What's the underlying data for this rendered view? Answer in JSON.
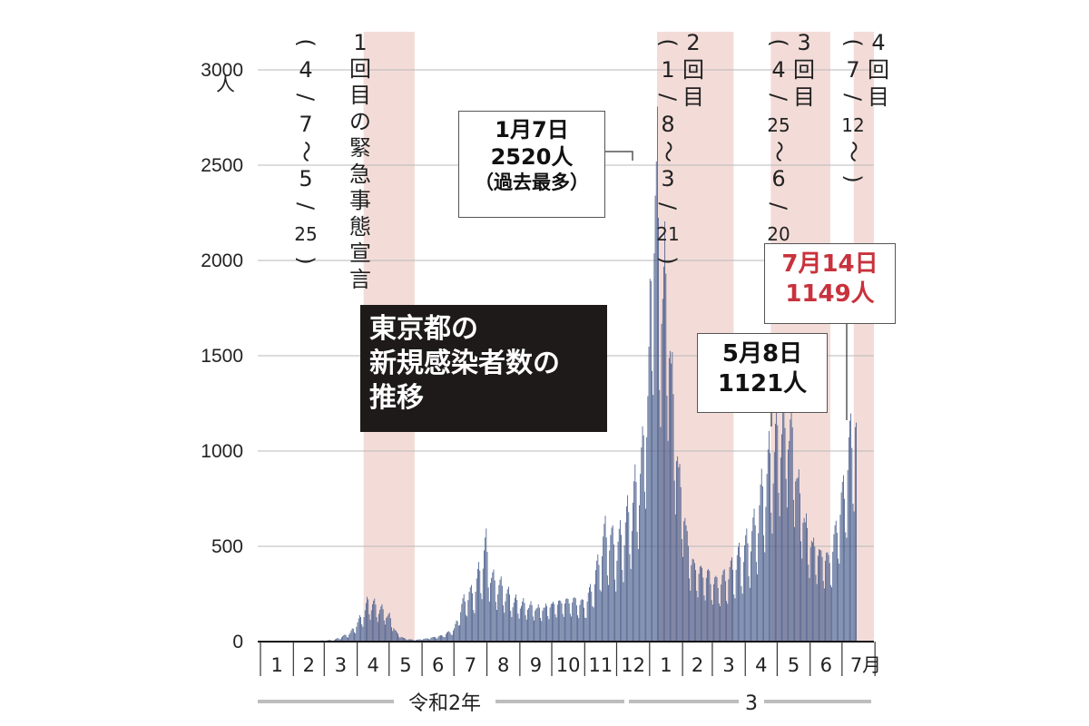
{
  "title_lines": [
    "東京都の",
    "新規感染者数の",
    "推移"
  ],
  "y_axis": {
    "unit": "人",
    "ticks": [
      0,
      500,
      1000,
      1500,
      2000,
      2500,
      3000
    ]
  },
  "x_axis": {
    "months": [
      "1",
      "2",
      "3",
      "4",
      "5",
      "6",
      "7",
      "8",
      "9",
      "10",
      "11",
      "12",
      "1",
      "2",
      "3",
      "4",
      "5",
      "6",
      "7月"
    ],
    "eras": [
      "令和2年",
      "3"
    ]
  },
  "emergencies": [
    {
      "label": "1回目の緊急事態宣言",
      "period": "（4/7～5/25）"
    },
    {
      "label": "2回目",
      "period": "（1/8～3/21）"
    },
    {
      "label": "3回目",
      "period": "（4/25～6/20）"
    },
    {
      "label": "4回目",
      "period": "（7/12～）"
    }
  ],
  "annotations": {
    "peak": {
      "date": "1月7日",
      "value": "2520人",
      "note": "（過去最多）"
    },
    "may": {
      "date": "5月8日",
      "value": "1121人"
    },
    "jul": {
      "date": "7月14日",
      "value": "1149人"
    }
  },
  "colors": {
    "bar": "#4a5e8c",
    "band": "#f3dcd8",
    "highlight": "#c8323c",
    "grid": "#b8b8b8"
  },
  "chart_data": {
    "type": "bar",
    "title": "東京都の新規感染者数の推移",
    "ylabel": "人",
    "ylim": [
      0,
      3000
    ],
    "x_range": [
      "2020-01-01",
      "2021-07-14"
    ],
    "series": [
      {
        "name": "新規感染者数",
        "points": [
          [
            "2020-01-01",
            0
          ],
          [
            "2020-02-20",
            3
          ],
          [
            "2020-03-10",
            8
          ],
          [
            "2020-03-25",
            40
          ],
          [
            "2020-04-01",
            90
          ],
          [
            "2020-04-08",
            150
          ],
          [
            "2020-04-11",
            197
          ],
          [
            "2020-04-17",
            175
          ],
          [
            "2020-04-25",
            150
          ],
          [
            "2020-05-01",
            120
          ],
          [
            "2020-05-08",
            40
          ],
          [
            "2020-05-15",
            15
          ],
          [
            "2020-05-25",
            8
          ],
          [
            "2020-06-05",
            15
          ],
          [
            "2020-06-20",
            30
          ],
          [
            "2020-07-01",
            60
          ],
          [
            "2020-07-10",
            200
          ],
          [
            "2020-07-20",
            250
          ],
          [
            "2020-07-31",
            460
          ],
          [
            "2020-08-05",
            300
          ],
          [
            "2020-08-15",
            260
          ],
          [
            "2020-08-25",
            200
          ],
          [
            "2020-09-05",
            180
          ],
          [
            "2020-09-20",
            160
          ],
          [
            "2020-10-05",
            190
          ],
          [
            "2020-10-20",
            200
          ],
          [
            "2020-11-01",
            180
          ],
          [
            "2020-11-10",
            300
          ],
          [
            "2020-11-20",
            520
          ],
          [
            "2020-12-01",
            450
          ],
          [
            "2020-12-15",
            650
          ],
          [
            "2020-12-25",
            880
          ],
          [
            "2020-12-31",
            1330
          ],
          [
            "2021-01-07",
            2520
          ],
          [
            "2021-01-10",
            1700
          ],
          [
            "2021-01-15",
            1800
          ],
          [
            "2021-01-20",
            1450
          ],
          [
            "2021-01-25",
            1000
          ],
          [
            "2021-01-31",
            700
          ],
          [
            "2021-02-08",
            400
          ],
          [
            "2021-02-15",
            350
          ],
          [
            "2021-02-25",
            320
          ],
          [
            "2021-03-05",
            280
          ],
          [
            "2021-03-15",
            320
          ],
          [
            "2021-03-25",
            400
          ],
          [
            "2021-04-01",
            450
          ],
          [
            "2021-04-10",
            550
          ],
          [
            "2021-04-20",
            800
          ],
          [
            "2021-04-28",
            950
          ],
          [
            "2021-05-08",
            1121
          ],
          [
            "2021-05-15",
            1000
          ],
          [
            "2021-05-22",
            700
          ],
          [
            "2021-05-31",
            500
          ],
          [
            "2021-06-10",
            430
          ],
          [
            "2021-06-20",
            400
          ],
          [
            "2021-06-25",
            550
          ],
          [
            "2021-07-01",
            700
          ],
          [
            "2021-07-07",
            920
          ],
          [
            "2021-07-14",
            1149
          ]
        ]
      }
    ],
    "highlight_bars": [
      {
        "date": "2021-01-07",
        "value": 2520
      },
      {
        "date": "2021-05-08",
        "value": 1121
      },
      {
        "date": "2021-07-14",
        "value": 1149
      }
    ],
    "shaded_periods": [
      [
        "2020-04-07",
        "2020-05-25"
      ],
      [
        "2021-01-08",
        "2021-03-21"
      ],
      [
        "2021-04-25",
        "2021-06-20"
      ],
      [
        "2021-07-12",
        "2021-07-31"
      ]
    ]
  }
}
